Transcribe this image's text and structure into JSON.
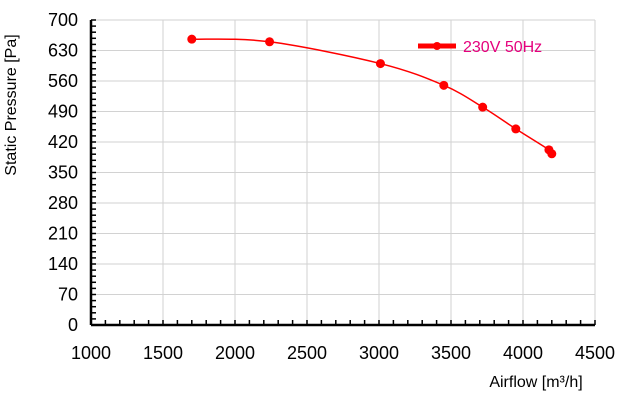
{
  "chart_data": {
    "type": "line",
    "title": "",
    "xlabel": "Airflow [m³/h]",
    "ylabel": "Static Pressure [Pa]",
    "xlim": [
      1000,
      4500
    ],
    "ylim": [
      0,
      700
    ],
    "x_ticks": [
      "1000",
      "1500",
      "2000",
      "2500",
      "3000",
      "3500",
      "4000",
      "4500"
    ],
    "y_ticks": [
      "0",
      "70",
      "140",
      "210",
      "280",
      "350",
      "420",
      "490",
      "560",
      "630",
      "700"
    ],
    "grid": true,
    "legend_position": "top-right",
    "series": [
      {
        "name": "230V 50Hz",
        "color": "#ff0000",
        "x": [
          1700,
          2240,
          3010,
          3450,
          3720,
          3950,
          4180,
          4200
        ],
        "y": [
          656,
          650,
          600,
          550,
          500,
          450,
          402,
          393
        ]
      }
    ]
  }
}
